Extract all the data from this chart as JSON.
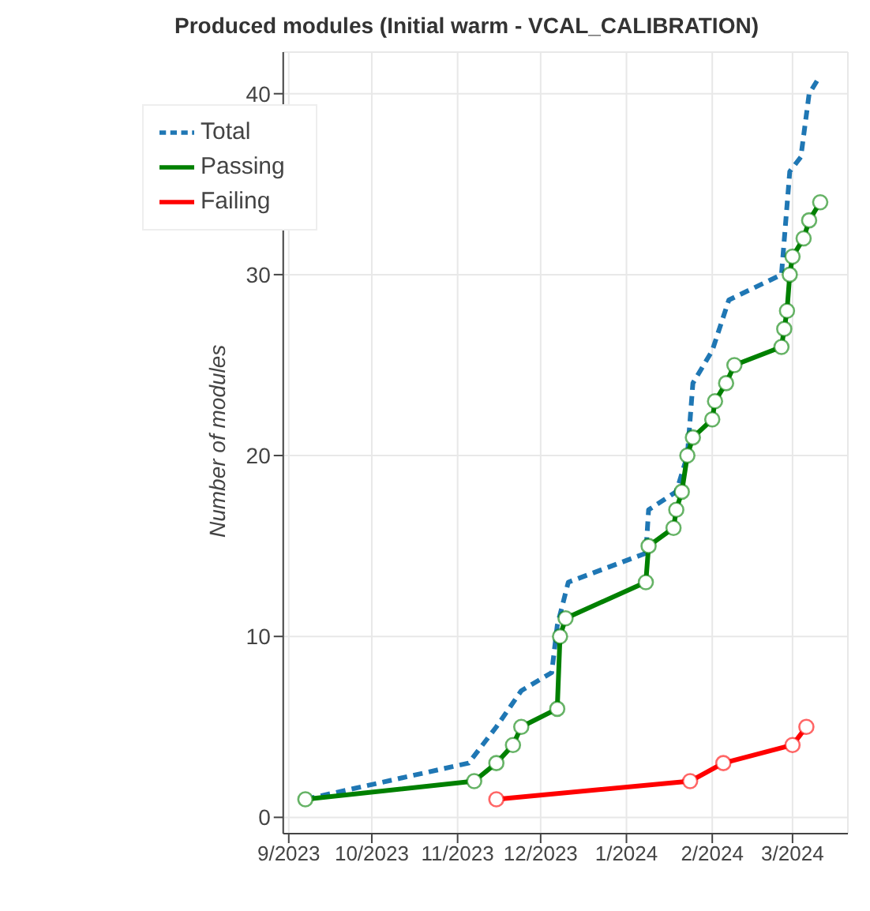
{
  "chart_data": {
    "type": "line",
    "title": "Produced modules (Initial warm - VCAL_CALIBRATION)",
    "ylabel": "Number of modules",
    "xlim": [
      "2023-08-30",
      "2024-03-21"
    ],
    "xticks": [
      {
        "value": "2023-09-01",
        "label": "9/2023"
      },
      {
        "value": "2023-10-01",
        "label": "10/2023"
      },
      {
        "value": "2023-11-01",
        "label": "11/2023"
      },
      {
        "value": "2023-12-01",
        "label": "12/2023"
      },
      {
        "value": "2024-01-01",
        "label": "1/2024"
      },
      {
        "value": "2024-02-01",
        "label": "2/2024"
      },
      {
        "value": "2024-03-01",
        "label": "3/2024"
      }
    ],
    "ylim": [
      -0.9,
      42.3
    ],
    "yticks": [
      0,
      10,
      20,
      30,
      40
    ],
    "grid": true,
    "legend": "top left",
    "series": [
      {
        "name": "Total",
        "color": "#1f77b4",
        "line_style": "dashed",
        "marker": "none",
        "x": [
          "2023-09-07",
          "2023-11-05",
          "2023-11-15",
          "2023-11-24",
          "2023-12-05",
          "2023-12-07",
          "2023-12-11",
          "2024-01-08",
          "2024-01-09",
          "2024-01-19",
          "2024-01-23",
          "2024-01-25",
          "2024-02-01",
          "2024-02-07",
          "2024-02-26",
          "2024-02-29",
          "2024-03-04",
          "2024-03-07",
          "2024-03-11"
        ],
        "values": [
          1,
          3,
          5,
          7,
          8,
          10.6,
          13,
          14.6,
          17,
          18,
          20,
          24,
          25.8,
          28.6,
          30,
          35.7,
          36.5,
          40,
          41
        ]
      },
      {
        "name": "Passing",
        "color": "#008000",
        "line_style": "solid",
        "marker": "circle",
        "x": [
          "2023-09-07",
          "2023-11-07",
          "2023-11-15",
          "2023-11-21",
          "2023-11-24",
          "2023-12-07",
          "2023-12-08",
          "2023-12-10",
          "2024-01-08",
          "2024-01-09",
          "2024-01-18",
          "2024-01-19",
          "2024-01-21",
          "2024-01-23",
          "2024-01-25",
          "2024-02-01",
          "2024-02-02",
          "2024-02-06",
          "2024-02-09",
          "2024-02-26",
          "2024-02-27",
          "2024-02-28",
          "2024-02-29",
          "2024-03-01",
          "2024-03-05",
          "2024-03-07",
          "2024-03-11"
        ],
        "values": [
          1,
          2,
          3,
          4,
          5,
          6,
          10,
          11,
          13,
          15,
          16,
          17,
          18,
          20,
          21,
          22,
          23,
          24,
          25,
          26,
          27,
          28,
          30,
          31,
          32,
          33,
          34
        ]
      },
      {
        "name": "Failing",
        "color": "#ff0000",
        "line_style": "solid",
        "marker": "circle",
        "x": [
          "2023-11-15",
          "2024-01-24",
          "2024-02-05",
          "2024-03-01",
          "2024-03-06"
        ],
        "values": [
          1,
          2,
          3,
          4,
          5
        ]
      }
    ]
  }
}
